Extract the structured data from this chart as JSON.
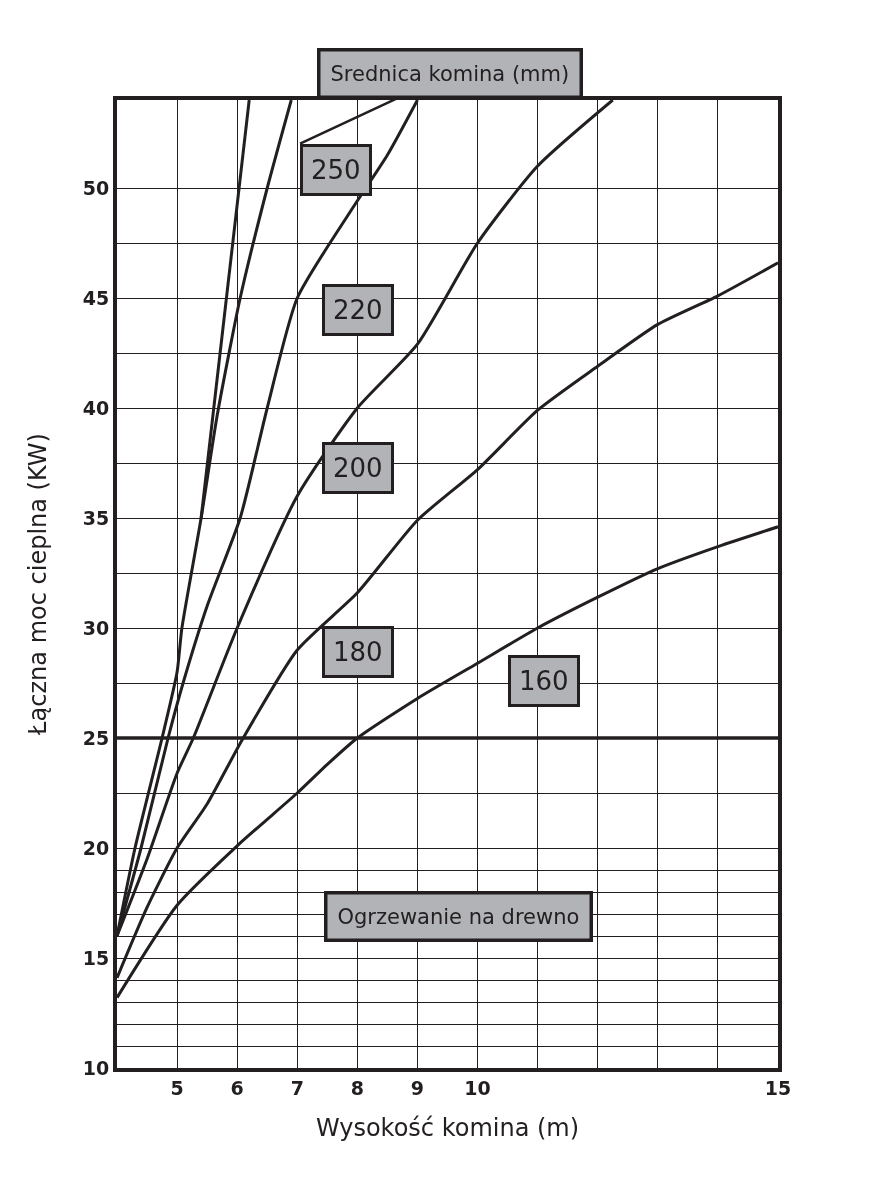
{
  "chart_data": {
    "type": "line",
    "xlabel": "Wysokość komina (m)",
    "ylabel": "Łączna moc cieplna (KW)",
    "series": [
      {
        "color": "#231f20",
        "x": [
          4,
          4.3,
          4.75,
          5.0,
          5.08,
          5.4,
          5.67,
          6.05,
          6.5,
          6.9
        ],
        "values": [
          16,
          20,
          25,
          28,
          30,
          35,
          39.7,
          45,
          50,
          54
        ]
      },
      {
        "color": "#231f20",
        "x": [
          5.4,
          6.2
        ],
        "values": [
          35,
          54
        ]
      },
      {
        "color": "#231f20",
        "x": [
          4,
          4.4,
          4.85,
          5.1,
          5.5,
          6.05,
          6.5,
          7.0,
          7.9,
          8.5,
          9.0
        ],
        "values": [
          16,
          20,
          25,
          27.5,
          31,
          35,
          40,
          45,
          49,
          51.5,
          54
        ]
      },
      {
        "color": "#231f20",
        "x": [
          4,
          4.5,
          5,
          5.27,
          6,
          7,
          8,
          9,
          10,
          11,
          12.25
        ],
        "values": [
          16,
          19.5,
          23.4,
          25,
          30,
          36,
          40,
          42.9,
          47.5,
          51,
          54
        ]
      },
      {
        "color": "#231f20",
        "x": [
          4,
          4.5,
          5,
          5.5,
          6.1,
          7,
          8,
          9,
          10,
          11,
          12,
          13,
          14,
          15
        ],
        "values": [
          14.1,
          17.3,
          20,
          22,
          25,
          29,
          31.6,
          34.9,
          37.2,
          39.9,
          41.9,
          43.8,
          45.1,
          46.6
        ]
      },
      {
        "color": "#231f20",
        "x": [
          4,
          5,
          6,
          7,
          7.5,
          8,
          9,
          10,
          11,
          12,
          13,
          14,
          15
        ],
        "values": [
          13.2,
          17.4,
          20.1,
          22.5,
          23.8,
          25,
          26.8,
          28.4,
          30,
          31.4,
          32.7,
          33.7,
          34.6
        ]
      }
    ],
    "xlim": [
      4,
      15
    ],
    "xticks": [
      5,
      6,
      7,
      8,
      9,
      10,
      {
        "value": 11,
        "label": null
      },
      {
        "value": 12,
        "label": null
      },
      {
        "value": 13,
        "label": null
      },
      {
        "value": 14,
        "label": null
      },
      15
    ],
    "ylim": [
      10,
      54
    ],
    "yticks": [
      10,
      {
        "value": 11,
        "label": null
      },
      {
        "value": 12,
        "label": null
      },
      {
        "value": 13,
        "label": null
      },
      {
        "value": 14,
        "label": null
      },
      15,
      {
        "value": 16,
        "label": null
      },
      {
        "value": 17,
        "label": null
      },
      {
        "value": 18,
        "label": null
      },
      {
        "value": 19,
        "label": null
      },
      20,
      {
        "value": 22.5,
        "label": null
      },
      25,
      {
        "value": 27.5,
        "label": null
      },
      30,
      {
        "value": 32.5,
        "label": null
      },
      35,
      {
        "value": 37.5,
        "label": null
      },
      40,
      {
        "value": 42.5,
        "label": null
      },
      45,
      {
        "value": 47.5,
        "label": null
      },
      50
    ],
    "grid": true,
    "marker": "none",
    "line_style": "solid",
    "ref_lines": [
      {
        "axis": "y",
        "value": 25,
        "label": null,
        "color": "#231f20"
      }
    ],
    "annotations": [
      "Srednica komina (mm)",
      "Ogrzewanie na drewno",
      "250",
      "220",
      "200",
      "180",
      "160"
    ]
  }
}
